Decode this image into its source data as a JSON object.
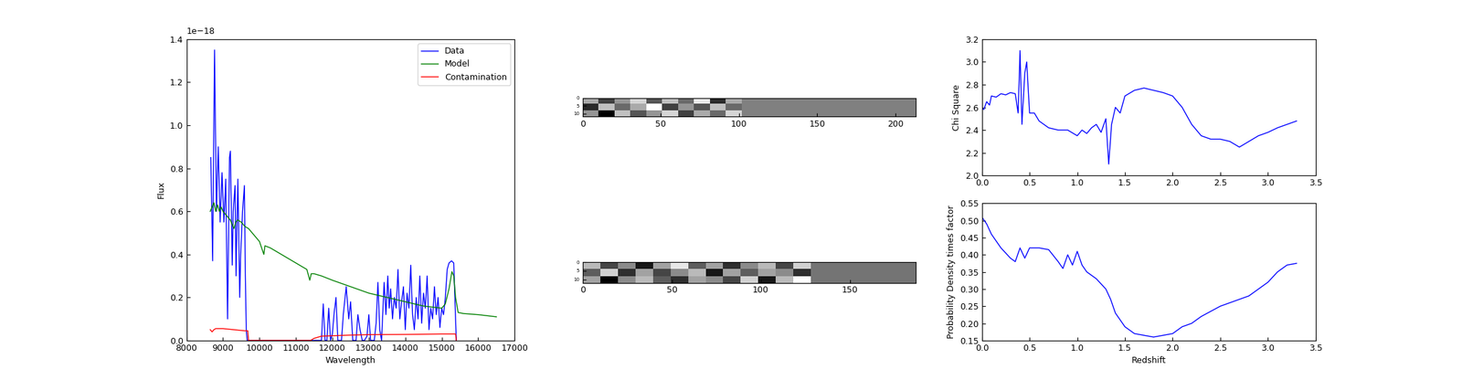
{
  "chart_data": [
    {
      "type": "line",
      "xlabel": "Wavelength",
      "ylabel": "Flux",
      "y_multiplier": "1e−18",
      "xlim": [
        8000,
        17000
      ],
      "ylim": [
        0.0,
        1.4
      ],
      "xticks": [
        8000,
        9000,
        10000,
        11000,
        12000,
        13000,
        14000,
        15000,
        16000,
        17000
      ],
      "yticks": [
        0.0,
        0.2,
        0.4,
        0.6,
        0.8,
        1.0,
        1.2,
        1.4
      ],
      "legend": "upper right",
      "series": [
        {
          "name": "Data",
          "color": "#0000ff",
          "x": [
            8665,
            8716,
            8768,
            8819,
            8870,
            8922,
            8973,
            9024,
            9075,
            9126,
            9178,
            9203,
            9254,
            9280,
            9331,
            9357,
            9408,
            9459,
            9485,
            9536,
            9587,
            9613,
            9638,
            9664,
            11700,
            11750,
            11800,
            11850,
            11900,
            11950,
            12000,
            12050,
            12100,
            12150,
            12250,
            12300,
            12380,
            12450,
            12500,
            12560,
            12650,
            12700,
            12760,
            12820,
            12880,
            12950,
            13000,
            13050,
            13150,
            13200,
            13250,
            13300,
            13350,
            13420,
            13470,
            13520,
            13560,
            13600,
            13650,
            13700,
            13750,
            13800,
            13850,
            13900,
            13950,
            14000,
            14050,
            14100,
            14150,
            14200,
            14250,
            14300,
            14350,
            14400,
            14450,
            14500,
            14550,
            14600,
            14650,
            14700,
            14750,
            14800,
            14850,
            14900,
            14950,
            15000,
            15050,
            15100,
            15150,
            15200,
            15270,
            15330,
            15380,
            15400
          ],
          "values": [
            0.85,
            0.37,
            1.35,
            0.6,
            0.9,
            0.55,
            0.78,
            0.55,
            0.75,
            0.1,
            0.85,
            0.88,
            0.35,
            0.6,
            0.72,
            0.3,
            0.75,
            0.2,
            0.4,
            0.6,
            0.72,
            0.3,
            0.05,
            0.0,
            0.0,
            0.17,
            0.0,
            0.0,
            0.15,
            0.0,
            0.03,
            0.13,
            0.2,
            0.0,
            0.0,
            0.12,
            0.25,
            0.1,
            0.18,
            0.0,
            0.0,
            0.12,
            0.05,
            0.0,
            0.0,
            0.02,
            0.12,
            0.0,
            0.0,
            0.08,
            0.27,
            0.05,
            0.0,
            0.27,
            0.12,
            0.3,
            0.15,
            0.24,
            0.1,
            0.2,
            0.15,
            0.33,
            0.1,
            0.18,
            0.25,
            0.05,
            0.22,
            0.15,
            0.35,
            0.12,
            0.05,
            0.2,
            0.1,
            0.3,
            0.08,
            0.22,
            0.15,
            0.3,
            0.05,
            0.15,
            0.1,
            0.25,
            0.12,
            0.2,
            0.06,
            0.15,
            0.12,
            0.2,
            0.33,
            0.36,
            0.37,
            0.36,
            0.1,
            0.0
          ]
        },
        {
          "name": "Model",
          "color": "#008000",
          "x": [
            8650,
            8700,
            8750,
            8800,
            8850,
            8900,
            8950,
            9000,
            9100,
            9200,
            9300,
            9350,
            9400,
            9500,
            9600,
            9700,
            9800,
            9900,
            10000,
            10080,
            10120,
            10150,
            10300,
            10500,
            10700,
            10900,
            11100,
            11300,
            11380,
            11420,
            11500,
            11700,
            12000,
            12500,
            13000,
            13500,
            14000,
            14500,
            15000,
            15100,
            15200,
            15280,
            15330,
            15380,
            15450,
            15600,
            16000,
            16500
          ],
          "values": [
            0.6,
            0.62,
            0.64,
            0.6,
            0.63,
            0.6,
            0.62,
            0.6,
            0.58,
            0.56,
            0.52,
            0.55,
            0.56,
            0.55,
            0.53,
            0.52,
            0.5,
            0.48,
            0.46,
            0.42,
            0.4,
            0.44,
            0.43,
            0.41,
            0.39,
            0.37,
            0.35,
            0.33,
            0.28,
            0.31,
            0.31,
            0.3,
            0.28,
            0.25,
            0.22,
            0.2,
            0.18,
            0.16,
            0.15,
            0.17,
            0.24,
            0.32,
            0.3,
            0.2,
            0.13,
            0.125,
            0.12,
            0.11
          ]
        },
        {
          "name": "Contamination",
          "color": "#ff0000",
          "x": [
            8650,
            8700,
            8750,
            8800,
            9000,
            9300,
            9600,
            9680,
            9700,
            11400,
            11500,
            11700,
            12000,
            12500,
            13000,
            14000,
            15000,
            15380,
            15400
          ],
          "values": [
            0.05,
            0.04,
            0.05,
            0.055,
            0.055,
            0.05,
            0.045,
            0.045,
            0.0,
            0.0,
            0.01,
            0.02,
            0.022,
            0.025,
            0.027,
            0.028,
            0.03,
            0.03,
            0.0
          ]
        }
      ]
    },
    {
      "type": "heatmap",
      "xlim": [
        0,
        213
      ],
      "ylim": [
        12,
        0
      ],
      "xticks": [
        0,
        50,
        100,
        150,
        200
      ],
      "yticks": [
        0,
        5,
        10
      ],
      "cells": [
        [
          0.2,
          -0.3,
          0.1,
          0.4,
          -0.2,
          0.3,
          -0.1,
          0.5,
          -0.4,
          0.2,
          0,
          0,
          0,
          0,
          0,
          0,
          0,
          0,
          0,
          0,
          0
        ],
        [
          -0.4,
          0.3,
          -0.1,
          0.2,
          0.6,
          -0.3,
          0.1,
          -0.2,
          0.3,
          -0.1,
          0,
          0,
          0,
          0,
          0,
          0,
          0,
          0,
          0,
          0,
          0
        ],
        [
          0.1,
          -0.6,
          0.3,
          -0.2,
          0.1,
          0.4,
          -0.3,
          0.2,
          -0.1,
          0.4,
          0,
          0,
          0,
          0,
          0,
          0,
          0,
          0,
          0,
          0,
          0
        ]
      ]
    },
    {
      "type": "heatmap",
      "xlim": [
        0,
        187
      ],
      "ylim": [
        12,
        0
      ],
      "xticks": [
        0,
        50,
        100,
        150
      ],
      "yticks": [
        0,
        5,
        10
      ],
      "cells": [
        [
          0.3,
          -0.2,
          0.1,
          -0.4,
          0.2,
          0.5,
          -0.1,
          0.2,
          -0.3,
          0.1,
          0.3,
          -0.2,
          0.4,
          0,
          0,
          0,
          0,
          0,
          0
        ],
        [
          -0.1,
          0.4,
          -0.3,
          0.2,
          -0.2,
          0.1,
          0.3,
          -0.4,
          0.2,
          -0.1,
          0.2,
          0.1,
          -0.3,
          0,
          0,
          0,
          0,
          0,
          0
        ],
        [
          0.2,
          -0.5,
          0.1,
          0.3,
          -0.1,
          -0.3,
          0.2,
          0.1,
          -0.2,
          0.4,
          -0.4,
          0.3,
          0.6,
          0,
          0,
          0,
          0,
          0,
          0
        ]
      ]
    },
    {
      "type": "line",
      "ylabel": "Chi Square",
      "color": "#0000ff",
      "xlim": [
        0.0,
        3.5
      ],
      "ylim": [
        2.0,
        3.2
      ],
      "xticks": [
        0.0,
        0.5,
        1.0,
        1.5,
        2.0,
        2.5,
        3.0,
        3.5
      ],
      "yticks": [
        2.0,
        2.2,
        2.4,
        2.6,
        2.8,
        3.0,
        3.2
      ],
      "x": [
        0.0,
        0.02,
        0.05,
        0.08,
        0.1,
        0.15,
        0.2,
        0.25,
        0.3,
        0.35,
        0.38,
        0.4,
        0.42,
        0.45,
        0.47,
        0.5,
        0.55,
        0.6,
        0.7,
        0.8,
        0.9,
        1.0,
        1.05,
        1.1,
        1.15,
        1.2,
        1.25,
        1.3,
        1.33,
        1.36,
        1.4,
        1.45,
        1.5,
        1.6,
        1.7,
        1.8,
        1.9,
        2.0,
        2.1,
        2.2,
        2.3,
        2.4,
        2.5,
        2.6,
        2.7,
        2.8,
        2.9,
        3.0,
        3.1,
        3.2,
        3.3
      ],
      "values": [
        2.6,
        2.58,
        2.65,
        2.62,
        2.7,
        2.69,
        2.72,
        2.71,
        2.73,
        2.72,
        2.55,
        3.1,
        2.45,
        2.9,
        3.0,
        2.55,
        2.55,
        2.48,
        2.42,
        2.4,
        2.4,
        2.35,
        2.4,
        2.37,
        2.42,
        2.45,
        2.38,
        2.5,
        2.1,
        2.45,
        2.6,
        2.55,
        2.7,
        2.75,
        2.77,
        2.75,
        2.73,
        2.7,
        2.6,
        2.45,
        2.35,
        2.32,
        2.32,
        2.3,
        2.25,
        2.3,
        2.35,
        2.38,
        2.42,
        2.45,
        2.48
      ]
    },
    {
      "type": "line",
      "xlabel": "Redshift",
      "ylabel": "Probability Density times factor",
      "color": "#0000ff",
      "xlim": [
        0.0,
        3.5
      ],
      "ylim": [
        0.15,
        0.55
      ],
      "xticks": [
        0.0,
        0.5,
        1.0,
        1.5,
        2.0,
        2.5,
        3.0,
        3.5
      ],
      "yticks": [
        0.15,
        {
          "value": 0.2,
          "label": "0.20"
        },
        0.25,
        {
          "value": 0.3,
          "label": "0.30"
        },
        0.35,
        {
          "value": 0.4,
          "label": "0.40"
        },
        0.45,
        {
          "value": 0.5,
          "label": "0.50"
        },
        0.55
      ],
      "x": [
        0.0,
        0.05,
        0.1,
        0.2,
        0.3,
        0.35,
        0.4,
        0.45,
        0.5,
        0.6,
        0.7,
        0.8,
        0.85,
        0.9,
        0.95,
        1.0,
        1.05,
        1.1,
        1.2,
        1.3,
        1.35,
        1.4,
        1.5,
        1.6,
        1.7,
        1.8,
        1.9,
        2.0,
        2.1,
        2.2,
        2.3,
        2.4,
        2.5,
        2.6,
        2.7,
        2.8,
        2.9,
        3.0,
        3.1,
        3.2,
        3.3
      ],
      "values": [
        0.51,
        0.49,
        0.46,
        0.42,
        0.39,
        0.38,
        0.42,
        0.39,
        0.42,
        0.42,
        0.415,
        0.38,
        0.36,
        0.4,
        0.37,
        0.41,
        0.37,
        0.35,
        0.33,
        0.3,
        0.27,
        0.23,
        0.19,
        0.17,
        0.165,
        0.16,
        0.165,
        0.17,
        0.19,
        0.2,
        0.22,
        0.235,
        0.25,
        0.26,
        0.27,
        0.28,
        0.3,
        0.32,
        0.35,
        0.37,
        0.375
      ]
    }
  ]
}
